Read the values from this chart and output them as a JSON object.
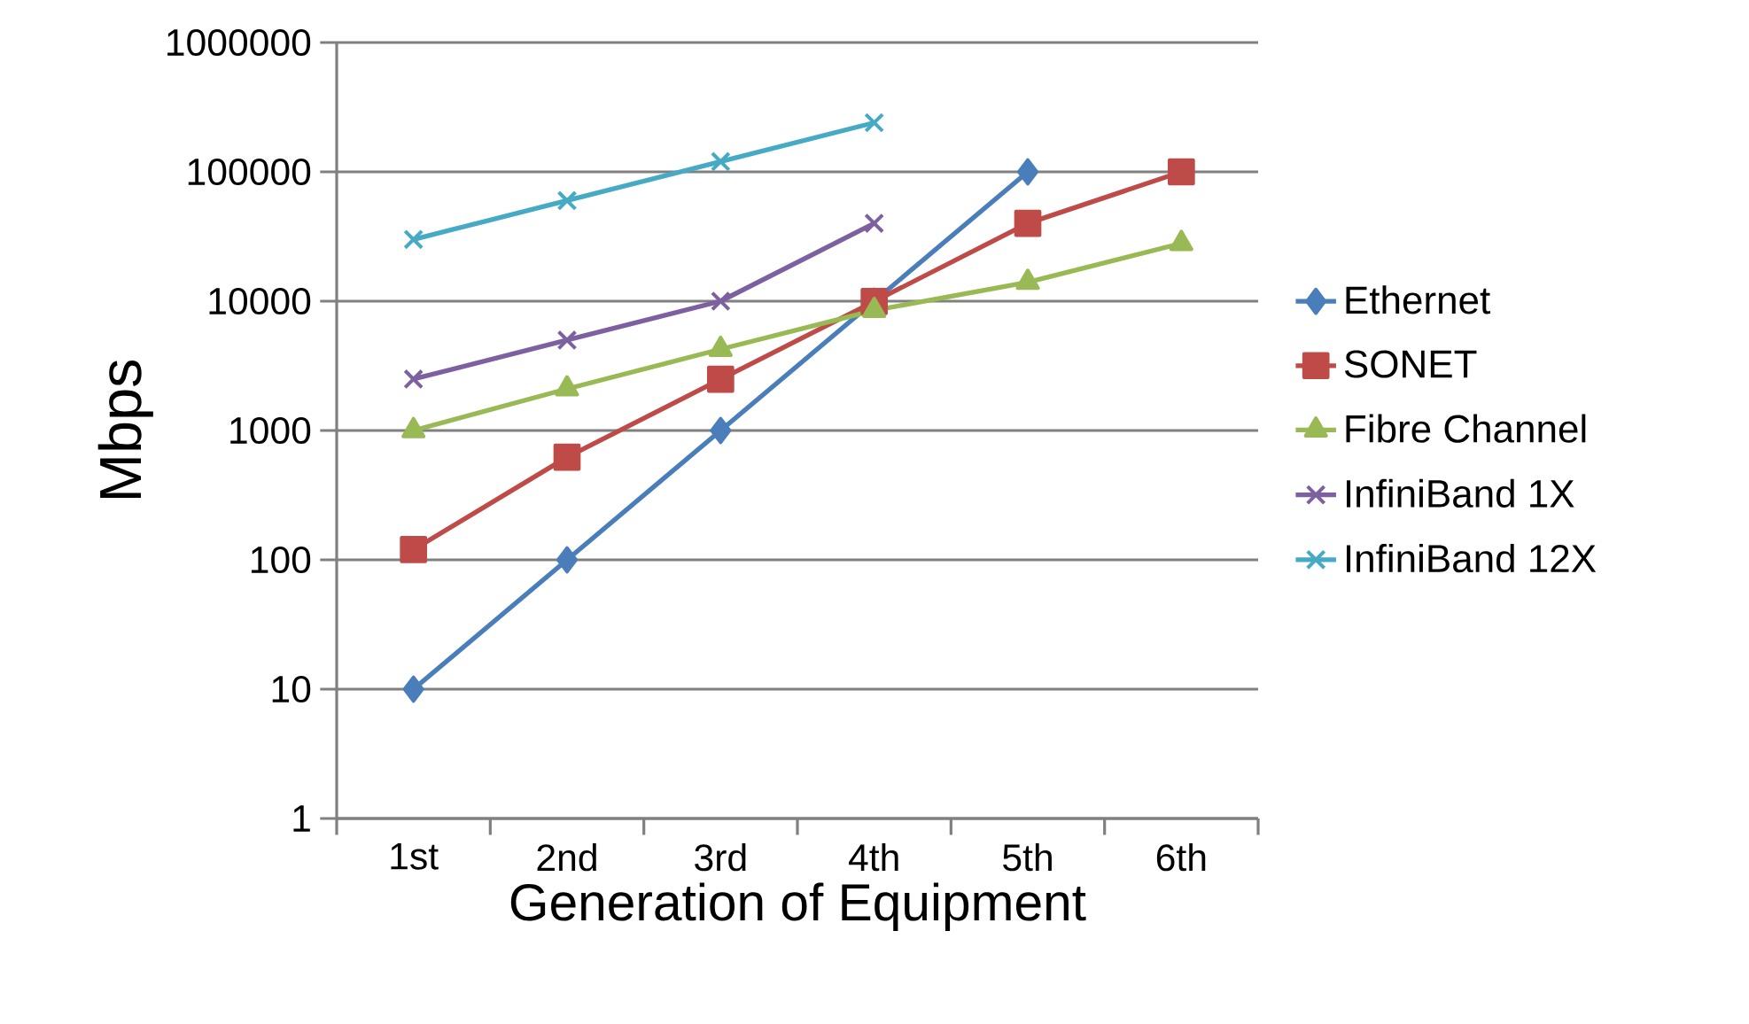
{
  "chart_data": {
    "type": "line",
    "xlabel": "Generation of Equipment",
    "ylabel": "Mbps",
    "categories": [
      "1st",
      "2nd",
      "3rd",
      "4th",
      "5th",
      "6th"
    ],
    "series": [
      {
        "name": "Ethernet",
        "color": "#4a7ebb",
        "marker": "diamond",
        "values": [
          10,
          100,
          1000,
          10000,
          100000,
          null
        ]
      },
      {
        "name": "SONET",
        "color": "#be4b48",
        "marker": "square",
        "values": [
          120,
          622,
          2488,
          9953,
          40000,
          100000
        ]
      },
      {
        "name": "Fibre Channel",
        "color": "#98b954",
        "marker": "triangle",
        "values": [
          1000,
          2100,
          4250,
          8500,
          14000,
          28000
        ]
      },
      {
        "name": "InfiniBand 1X",
        "color": "#7d60a0",
        "marker": "cross",
        "values": [
          2500,
          5000,
          10000,
          40000,
          null,
          null
        ]
      },
      {
        "name": "InfiniBand 12X",
        "color": "#46aac5",
        "marker": "cross",
        "values": [
          30000,
          60000,
          120000,
          240000,
          null,
          null
        ]
      }
    ],
    "log": "y",
    "ylim": [
      1,
      1000000
    ],
    "yticks": [
      1,
      10,
      100,
      1000,
      10000,
      100000,
      1000000
    ],
    "grid": "y",
    "legend": "right",
    "line_style": "solid"
  }
}
